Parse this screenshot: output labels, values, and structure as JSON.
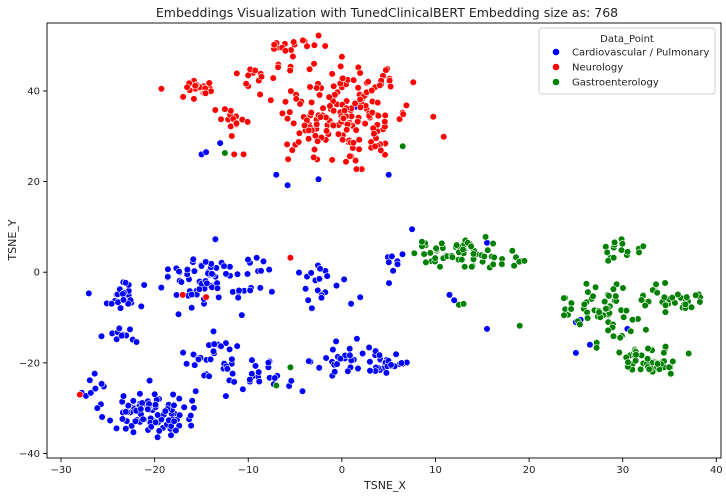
{
  "chart_data": {
    "type": "scatter",
    "title": "Embeddings Visualization with TunedClinicalBERT Embedding size as: 768",
    "xlabel": "TSNE_X",
    "ylabel": "TSNE_Y",
    "xlim": [
      -31.5,
      40.5
    ],
    "ylim": [
      -41,
      55
    ],
    "xticks": [
      -30,
      -20,
      -10,
      0,
      10,
      20,
      30,
      40
    ],
    "yticks": [
      -40,
      -20,
      0,
      20,
      40
    ],
    "grid": false,
    "legend": {
      "title": "Data_Point",
      "placement": "top-right"
    },
    "series": [
      {
        "name": "Cardiovascular / Pulmonary",
        "color": "#0000ff",
        "clusters": [
          {
            "cx": -20.5,
            "cy": -31,
            "sx": 2.4,
            "sy": 2.8,
            "n": 95
          },
          {
            "cx": -24,
            "cy": -5,
            "sx": 1.4,
            "sy": 1.4,
            "n": 22
          },
          {
            "cx": -23.5,
            "cy": -14,
            "sx": 0.9,
            "sy": 1.2,
            "n": 12
          },
          {
            "cx": -13.5,
            "cy": -1,
            "sx": 3.4,
            "sy": 3.2,
            "n": 80
          },
          {
            "cx": -13.5,
            "cy": -19,
            "sx": 1.6,
            "sy": 2.2,
            "n": 24
          },
          {
            "cx": -9,
            "cy": -23,
            "sx": 2.3,
            "sy": 1.9,
            "n": 28
          },
          {
            "cx": -2,
            "cy": -3,
            "sx": 1.8,
            "sy": 2.5,
            "n": 20
          },
          {
            "cx": 0,
            "cy": -19,
            "sx": 1.4,
            "sy": 2.2,
            "n": 22
          },
          {
            "cx": 4.5,
            "cy": -20,
            "sx": 1.5,
            "sy": 2.2,
            "n": 30
          },
          {
            "cx": 5.5,
            "cy": 1,
            "sx": 0.8,
            "sy": 2.2,
            "n": 8
          },
          {
            "cx": -26.5,
            "cy": -25,
            "sx": 0.8,
            "sy": 1.4,
            "n": 9
          }
        ],
        "points": [
          {
            "x": -15,
            "y": 26
          },
          {
            "x": -14.5,
            "y": 26.5
          },
          {
            "x": -13,
            "y": 28.5
          },
          {
            "x": -7,
            "y": 21.5
          },
          {
            "x": -5.8,
            "y": 19.2
          },
          {
            "x": -2.5,
            "y": 20.5
          },
          {
            "x": 1.5,
            "y": 36.5
          },
          {
            "x": 5,
            "y": 21.5
          },
          {
            "x": 7.5,
            "y": 9.5
          },
          {
            "x": 11.5,
            "y": -5
          },
          {
            "x": 12,
            "y": -6.2
          },
          {
            "x": 15.5,
            "y": -12.5
          },
          {
            "x": 15.5,
            "y": 6.5
          },
          {
            "x": 25,
            "y": -11
          },
          {
            "x": 25.5,
            "y": -10.5
          },
          {
            "x": 25,
            "y": -17.8
          },
          {
            "x": 30.5,
            "y": -12.5
          },
          {
            "x": 26.5,
            "y": -16
          }
        ]
      },
      {
        "name": "Neurology",
        "color": "#ff0000",
        "clusters": [
          {
            "cx": 0,
            "cy": 35,
            "sx": 3.7,
            "sy": 5.7,
            "n": 185
          },
          {
            "cx": -15.5,
            "cy": 40.5,
            "sx": 1.3,
            "sy": 1.1,
            "n": 20
          },
          {
            "cx": -11.5,
            "cy": 34,
            "sx": 1.3,
            "sy": 1.2,
            "n": 14
          },
          {
            "cx": -9,
            "cy": 43.5,
            "sx": 1.2,
            "sy": 1.0,
            "n": 10
          },
          {
            "cx": -5.5,
            "cy": 50,
            "sx": 1.5,
            "sy": 0.6,
            "n": 14
          },
          {
            "cx": 4.5,
            "cy": 42.5,
            "sx": 1.7,
            "sy": 1.2,
            "n": 12
          }
        ],
        "points": [
          {
            "x": -28,
            "y": -27
          },
          {
            "x": -17,
            "y": -5
          },
          {
            "x": -14.5,
            "y": -5.5
          },
          {
            "x": -5.5,
            "y": 3.2
          },
          {
            "x": -11.5,
            "y": 26
          },
          {
            "x": -10.5,
            "y": 26
          }
        ]
      },
      {
        "name": "Gastroenterology",
        "color": "#008000",
        "clusters": [
          {
            "cx": 12,
            "cy": 4,
            "sx": 2.4,
            "sy": 1.5,
            "n": 52
          },
          {
            "cx": 27,
            "cy": -7,
            "sx": 2.0,
            "sy": 2.8,
            "n": 40
          },
          {
            "cx": 30,
            "cy": 5,
            "sx": 1.0,
            "sy": 1.0,
            "n": 16
          },
          {
            "cx": 35.5,
            "cy": -5.5,
            "sx": 1.7,
            "sy": 1.8,
            "n": 36
          },
          {
            "cx": 33,
            "cy": -19.5,
            "sx": 1.8,
            "sy": 1.5,
            "n": 48
          },
          {
            "cx": 29.5,
            "cy": -13,
            "sx": 1.6,
            "sy": 3.0,
            "n": 18
          },
          {
            "cx": 16.5,
            "cy": 3.5,
            "sx": 1.6,
            "sy": 1.2,
            "n": 12
          }
        ],
        "points": [
          {
            "x": 12.5,
            "y": -7.2
          },
          {
            "x": 13,
            "y": -7
          },
          {
            "x": 19,
            "y": -11.8
          },
          {
            "x": 19.5,
            "y": 2.5
          },
          {
            "x": 6.5,
            "y": 27.8
          },
          {
            "x": -12.5,
            "y": 26.3
          },
          {
            "x": -7,
            "y": -25
          },
          {
            "x": -5.5,
            "y": -21
          }
        ]
      }
    ]
  }
}
